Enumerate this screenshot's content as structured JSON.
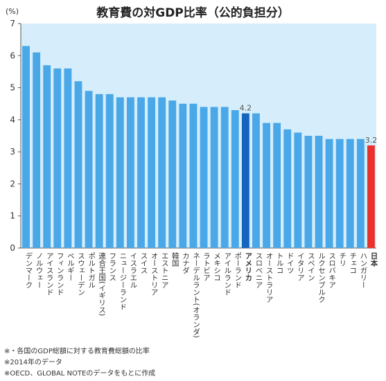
{
  "chart_data": {
    "type": "bar",
    "title": "教育費の対GDP比率（公的負担分）",
    "ylabel": "(%)",
    "ylim": [
      0,
      7
    ],
    "yticks": [
      0,
      1,
      2,
      3,
      4,
      5,
      6,
      7
    ],
    "grid": false,
    "categories": [
      "デンマーク",
      "ノルウェー",
      "アイスランド",
      "フィンランド",
      "ベルギー",
      "スウェーデン",
      "ポルトガル",
      "連合王国(イギリス)",
      "フランス",
      "ニュージーランド",
      "イスラエル",
      "スイス",
      "オーストリア",
      "エストニア",
      "韓国",
      "カナダ",
      "ネーデルラント(オランダ)",
      "ラトビア",
      "メキシコ",
      "アイルランド",
      "ポーランド",
      "アメリカ",
      "スロベニア",
      "オーストラリア",
      "トルコ",
      "ドイツ",
      "イタリア",
      "スペイン",
      "ルクセンブルク",
      "スロバキア",
      "チリ",
      "チェコ",
      "ハンガリー",
      "日本"
    ],
    "values": [
      6.3,
      6.1,
      5.7,
      5.6,
      5.6,
      5.2,
      4.9,
      4.8,
      4.8,
      4.7,
      4.7,
      4.7,
      4.7,
      4.7,
      4.6,
      4.5,
      4.5,
      4.4,
      4.4,
      4.4,
      4.3,
      4.2,
      4.2,
      3.9,
      3.9,
      3.7,
      3.6,
      3.5,
      3.5,
      3.4,
      3.4,
      3.4,
      3.4,
      3.2
    ],
    "data_labels": [
      {
        "category": "アメリカ",
        "text": "4.2"
      },
      {
        "category": "日本",
        "text": "3.2"
      }
    ],
    "bold_categories": [
      "アメリカ",
      "日本"
    ],
    "colors": {
      "default": "#4aa8e8",
      "highlight_us": "#1565c0",
      "highlight_jp": "#e8322e",
      "plot_bg": "#d6eefb",
      "axis": "#555555"
    }
  },
  "notes": [
    "※・各国のGDP総額に対する教育費総額の比率",
    "※2014年のデータ",
    "※OECD、GLOBAL NOTEのデータをもとに作成"
  ]
}
